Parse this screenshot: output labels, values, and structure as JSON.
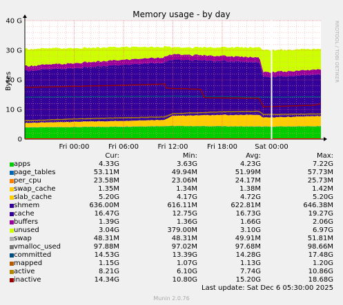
{
  "chart_data": {
    "type": "area",
    "title": "Memory usage - by day",
    "ylabel": "Bytes",
    "watermark": "RRDTOOL / TOBI OETIKER",
    "ylim": [
      0,
      40
    ],
    "y_ticks": [
      "0",
      "10 G",
      "20 G",
      "30 G",
      "40 G"
    ],
    "x_ticks": [
      "Fri 00:00",
      "Fri 06:00",
      "Fri 12:00",
      "Fri 18:00",
      "Sat 00:00"
    ],
    "x_range_hours": [
      -6,
      30
    ],
    "x_tick_hours": [
      0,
      6,
      12,
      18,
      24
    ],
    "now_hour": 24.0,
    "stack_units": "GB",
    "stack": [
      {
        "name": "apps",
        "color": "#00cc00",
        "x": [
          -6,
          6,
          12,
          18,
          23,
          30
        ],
        "values": [
          3.9,
          4.2,
          4.4,
          4.3,
          4.2,
          4.3
        ]
      },
      {
        "name": "page_tables",
        "color": "#0066b3",
        "x": [
          -6,
          30
        ],
        "values": [
          0.05,
          0.05
        ]
      },
      {
        "name": "per_cpu",
        "color": "#ff8000",
        "x": [
          -6,
          30
        ],
        "values": [
          0.024,
          0.024
        ]
      },
      {
        "name": "swap_cache",
        "color": "#ffcc00",
        "x": [
          -6,
          30
        ],
        "values": [
          0.0014,
          0.0014
        ]
      },
      {
        "name": "slab_cache",
        "color": "#ffcc00",
        "x": [
          -6,
          6,
          11,
          12,
          18,
          22.5,
          23,
          30
        ],
        "values": [
          1.5,
          1.9,
          2.1,
          3.4,
          3.8,
          3.9,
          3.0,
          3.4
        ]
      },
      {
        "name": "shmem",
        "color": "#330099",
        "x": [
          -6,
          30
        ],
        "values": [
          0.62,
          0.62
        ]
      },
      {
        "name": "cache",
        "color": "#330099",
        "x": [
          -6,
          0,
          6,
          11,
          12,
          18,
          22.5,
          23,
          30
        ],
        "values": [
          17.0,
          17.5,
          18.3,
          18.8,
          18.3,
          17.6,
          17.2,
          13.0,
          13.4
        ]
      },
      {
        "name": "buffers",
        "color": "#990099",
        "x": [
          -6,
          6,
          12,
          18,
          23,
          30
        ],
        "values": [
          1.6,
          1.7,
          1.8,
          1.7,
          1.6,
          1.7
        ]
      },
      {
        "name": "unused",
        "color": "#ccff00",
        "x": [
          -6,
          6,
          11,
          12,
          18,
          22.5,
          23,
          30
        ],
        "values": [
          5.8,
          4.3,
          3.5,
          2.3,
          2.9,
          3.4,
          7.5,
          6.9
        ]
      }
    ],
    "lines": [
      {
        "name": "committed",
        "color": "#004d80",
        "units": "GB",
        "x": [
          -6,
          6,
          12,
          18,
          23,
          30
        ],
        "values": [
          14.2,
          14.4,
          14.5,
          14.4,
          14.2,
          14.3
        ]
      },
      {
        "name": "active",
        "color": "#b38600",
        "units": "GB",
        "x": [
          -6,
          0,
          6,
          11,
          12,
          18,
          22.5,
          23,
          30
        ],
        "values": [
          6.2,
          6.8,
          7.2,
          7.5,
          8.6,
          9.2,
          9.4,
          8.3,
          8.5
        ]
      },
      {
        "name": "inactive",
        "color": "#990000",
        "units": "GB",
        "x": [
          -6,
          0,
          6,
          11,
          11.2,
          15.5,
          15.7,
          22.5,
          23,
          29.5,
          30
        ],
        "values": [
          17.5,
          17.8,
          18.2,
          18.6,
          17.2,
          16.8,
          14.0,
          13.8,
          10.9,
          11.5,
          12.0
        ]
      }
    ],
    "columns": [
      "Cur:",
      "Min:",
      "Avg:",
      "Max:"
    ],
    "legend": [
      {
        "name": "apps",
        "color": "#00cc00",
        "cur": "4.33G",
        "min": "3.63G",
        "avg": "4.23G",
        "max": "7.22G"
      },
      {
        "name": "page_tables",
        "color": "#0066b3",
        "cur": "53.11M",
        "min": "49.94M",
        "avg": "51.99M",
        "max": "57.73M"
      },
      {
        "name": "per_cpu",
        "color": "#ff8000",
        "cur": "23.58M",
        "min": "23.06M",
        "avg": "24.17M",
        "max": "25.73M"
      },
      {
        "name": "swap_cache",
        "color": "#ffcc00",
        "cur": "1.35M",
        "min": "1.34M",
        "avg": "1.38M",
        "max": "1.42M"
      },
      {
        "name": "slab_cache",
        "color": "#ffcc00",
        "cur": "5.20G",
        "min": "4.17G",
        "avg": "4.72G",
        "max": "5.20G"
      },
      {
        "name": "shmem",
        "color": "#330099",
        "cur": "636.00M",
        "min": "616.11M",
        "avg": "622.81M",
        "max": "646.38M"
      },
      {
        "name": "cache",
        "color": "#330099",
        "cur": "16.47G",
        "min": "12.75G",
        "avg": "16.73G",
        "max": "19.27G"
      },
      {
        "name": "buffers",
        "color": "#990099",
        "cur": "1.39G",
        "min": "1.36G",
        "avg": "1.66G",
        "max": "2.06G"
      },
      {
        "name": "unused",
        "color": "#ccff00",
        "cur": "3.04G",
        "min": "379.00M",
        "avg": "3.10G",
        "max": "6.97G"
      },
      {
        "name": "swap",
        "color": "#aaaaaa",
        "cur": "48.31M",
        "min": "48.31M",
        "avg": "49.91M",
        "max": "51.81M"
      },
      {
        "name": "vmalloc_used",
        "color": "#777777",
        "cur": "97.88M",
        "min": "97.02M",
        "avg": "97.68M",
        "max": "98.66M"
      },
      {
        "name": "committed",
        "color": "#004d80",
        "cur": "14.53G",
        "min": "13.39G",
        "avg": "14.28G",
        "max": "17.48G"
      },
      {
        "name": "mapped",
        "color": "#b35a00",
        "cur": "1.15G",
        "min": "1.07G",
        "avg": "1.13G",
        "max": "1.20G"
      },
      {
        "name": "active",
        "color": "#b38600",
        "cur": "8.21G",
        "min": "6.10G",
        "avg": "7.74G",
        "max": "10.86G"
      },
      {
        "name": "inactive",
        "color": "#990000",
        "cur": "14.34G",
        "min": "10.80G",
        "avg": "15.20G",
        "max": "18.68G"
      }
    ],
    "grid": true
  },
  "footer": {
    "last_update": "Last update: Sat Dec  6 05:30:00 2025",
    "version": "Munin 2.0.76"
  }
}
